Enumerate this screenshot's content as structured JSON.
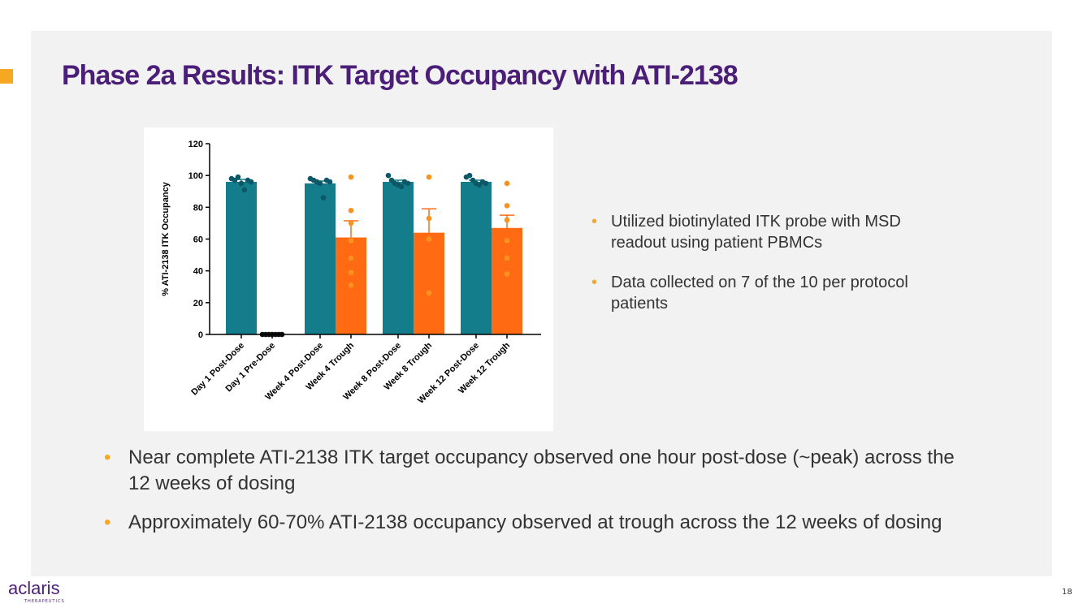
{
  "title": "Phase 2a Results: ITK Target Occupancy with ATI-2138",
  "side_bullets": [
    "Utilized biotinylated ITK probe with MSD readout using patient PBMCs",
    "Data collected on 7 of the 10 per protocol patients"
  ],
  "bottom_bullets": [
    "Near complete ATI-2138 ITK target occupancy observed one hour post-dose (~peak) across the 12 weeks of dosing",
    "Approximately 60-70% ATI-2138 occupancy observed at trough across the 12 weeks of dosing"
  ],
  "logo": "aclaris",
  "logo_subtitle": "THERAPEUTICS",
  "page_number": "18",
  "chart_data": {
    "type": "bar",
    "y_label": "% ATI-2138 ITK Occupancy",
    "categories": [
      "Day 1 Post-Dose",
      "Day 1 Pre-Dose",
      "Week 4 Post-Dose",
      "Week 4 Trough",
      "Week 8 Post-Dose",
      "Week 8 Trough",
      "Week 12 Post-Dose",
      "Week 12 Trough"
    ],
    "values": [
      96,
      0,
      95,
      61,
      96,
      64,
      96,
      67
    ],
    "errors": [
      1.5,
      0,
      1.5,
      10.5,
      1,
      15,
      1,
      8
    ],
    "colors": [
      "#147d8c",
      "#147d8c",
      "#147d8c",
      "#ff6a13",
      "#147d8c",
      "#ff6a13",
      "#147d8c",
      "#ff6a13"
    ],
    "point_colors": [
      "#0c5866",
      "#111111",
      "#0c5866",
      "#f7931e",
      "#0c5866",
      "#f7931e",
      "#0c5866",
      "#f7931e"
    ],
    "points": [
      [
        98,
        97,
        99,
        95,
        91,
        97,
        96
      ],
      [
        0,
        0,
        0,
        0,
        0,
        0,
        0
      ],
      [
        98,
        97,
        96,
        95,
        86,
        97,
        96
      ],
      [
        99,
        78,
        70,
        59,
        48,
        39,
        31
      ],
      [
        100,
        97,
        95,
        94,
        93,
        96,
        95
      ],
      [
        99,
        73,
        60,
        26
      ],
      [
        99,
        100,
        97,
        95,
        94,
        96,
        95
      ],
      [
        95,
        81,
        72,
        59,
        48,
        38
      ]
    ],
    "ylim": [
      0,
      120
    ],
    "yticks": [
      0,
      20,
      40,
      60,
      80,
      100,
      120
    ]
  }
}
